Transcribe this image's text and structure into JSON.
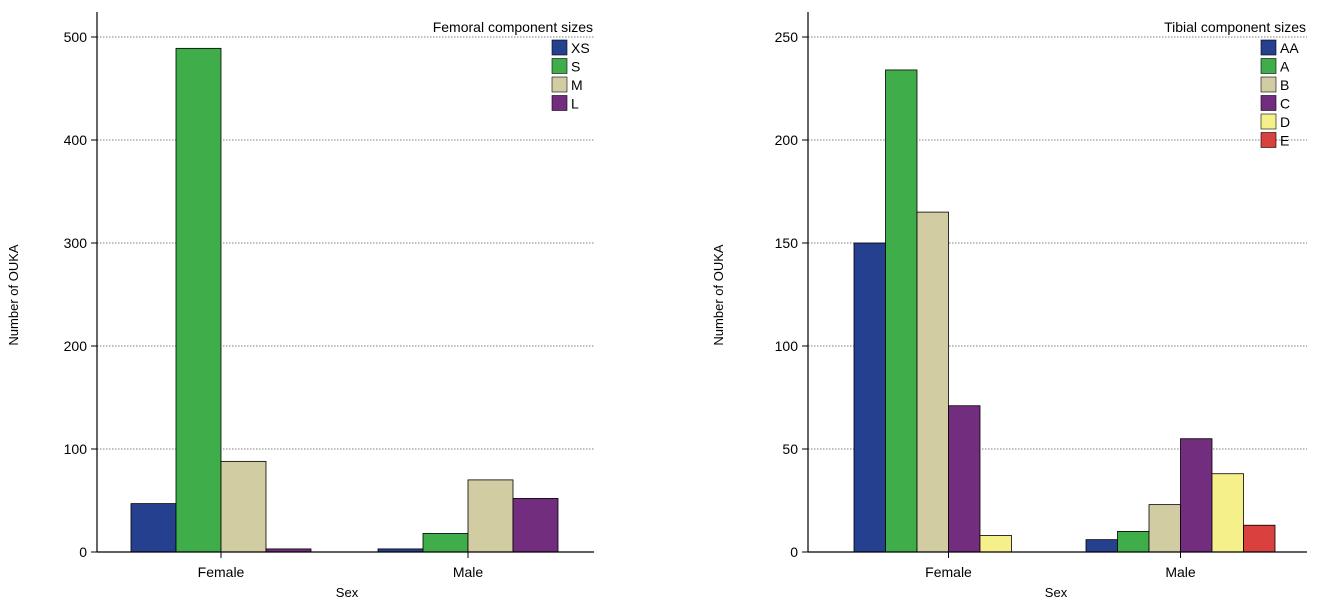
{
  "chart_data": [
    {
      "type": "bar",
      "title": "",
      "xlabel": "Sex",
      "ylabel": "Number of OUKA",
      "categories": [
        "Female",
        "Male"
      ],
      "ylim": [
        0,
        520
      ],
      "yticks": [
        0,
        100,
        200,
        300,
        400,
        500
      ],
      "grid": true,
      "legend_title": "Femoral component sizes",
      "legend_position": "top-right",
      "series": [
        {
          "name": "XS",
          "color": "#25408f",
          "values": [
            47,
            3
          ]
        },
        {
          "name": "S",
          "color": "#3fae4a",
          "values": [
            489,
            18
          ]
        },
        {
          "name": "M",
          "color": "#d2cca3",
          "values": [
            88,
            70
          ]
        },
        {
          "name": "L",
          "color": "#732d7e",
          "values": [
            3,
            52
          ]
        }
      ]
    },
    {
      "type": "bar",
      "title": "",
      "xlabel": "Sex",
      "ylabel": "Number of OUKA",
      "categories": [
        "Female",
        "Male"
      ],
      "ylim": [
        0,
        260
      ],
      "yticks": [
        0,
        50,
        100,
        150,
        200,
        250
      ],
      "grid": true,
      "legend_title": "Tibial component sizes",
      "legend_position": "top-right",
      "series": [
        {
          "name": "AA",
          "color": "#25408f",
          "values": [
            150,
            6
          ]
        },
        {
          "name": "A",
          "color": "#3fae4a",
          "values": [
            234,
            10
          ]
        },
        {
          "name": "B",
          "color": "#d2cca3",
          "values": [
            165,
            23
          ]
        },
        {
          "name": "C",
          "color": "#732d7e",
          "values": [
            71,
            55
          ]
        },
        {
          "name": "D",
          "color": "#f6f08a",
          "values": [
            8,
            38
          ]
        },
        {
          "name": "E",
          "color": "#d9413e",
          "values": [
            0,
            13
          ]
        }
      ]
    }
  ]
}
